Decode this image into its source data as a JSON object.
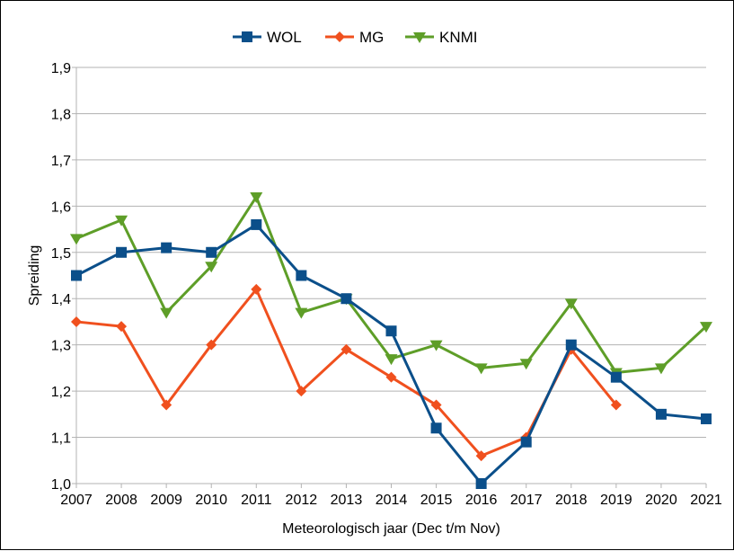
{
  "chart_data": {
    "type": "line",
    "title": "",
    "xlabel": "Meteorologisch jaar (Dec t/m Nov)",
    "ylabel": "Spreiding",
    "x": [
      2007,
      2008,
      2009,
      2010,
      2011,
      2012,
      2013,
      2014,
      2015,
      2016,
      2017,
      2018,
      2019,
      2020,
      2021
    ],
    "ylim": [
      1.0,
      1.9
    ],
    "yticks": [
      "1,0",
      "1,1",
      "1,2",
      "1,3",
      "1,4",
      "1,5",
      "1,6",
      "1,7",
      "1,8",
      "1,9"
    ],
    "grid": "horizontal",
    "legend_position": "top",
    "series": [
      {
        "name": "WOL",
        "color": "#0b4f8a",
        "marker": "square",
        "values": [
          1.45,
          1.5,
          1.51,
          1.5,
          1.56,
          1.45,
          1.4,
          1.33,
          1.12,
          1.0,
          1.09,
          1.3,
          1.23,
          1.15,
          1.14
        ]
      },
      {
        "name": "MG",
        "color": "#f0501e",
        "marker": "diamond",
        "values": [
          1.35,
          1.34,
          1.17,
          1.3,
          1.42,
          1.2,
          1.29,
          1.23,
          1.17,
          1.06,
          1.1,
          1.29,
          1.17,
          null,
          null
        ]
      },
      {
        "name": "KNMI",
        "color": "#5e9e28",
        "marker": "triangle-down",
        "values": [
          1.53,
          1.57,
          1.37,
          1.47,
          1.62,
          1.37,
          1.4,
          1.27,
          1.3,
          1.25,
          1.26,
          1.39,
          1.24,
          1.25,
          1.34
        ]
      }
    ]
  }
}
